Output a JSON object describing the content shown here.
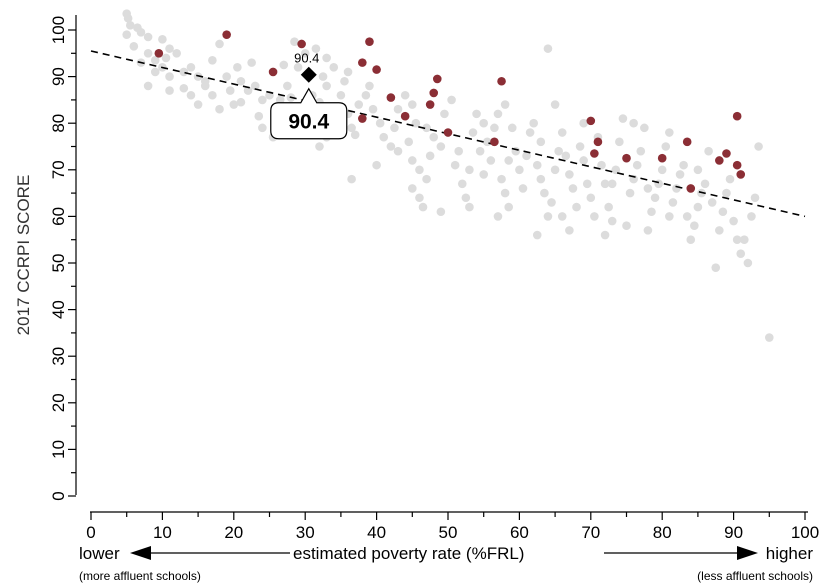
{
  "chart_data": {
    "type": "scatter",
    "ylabel": "2017 CCRPI SCORE",
    "xlabel": "estimated poverty rate (%FRL)",
    "x_left_label": "lower",
    "x_left_sublabel": "(more affluent schools)",
    "x_right_label": "higher",
    "x_right_sublabel": "(less affluent schools)",
    "xlim": [
      0,
      100
    ],
    "ylim": [
      0,
      100
    ],
    "xticks": [
      "0",
      "10",
      "20",
      "30",
      "40",
      "50",
      "60",
      "70",
      "80",
      "90",
      "100"
    ],
    "yticks": [
      "0",
      "10",
      "20",
      "30",
      "40",
      "50",
      "60",
      "70",
      "80",
      "90",
      "100"
    ],
    "grid": false,
    "colors": {
      "background_points": "#dcdcdc",
      "highlight_points": "#8b2e35",
      "trend_line": "#000000",
      "marker": "#000000"
    },
    "trend_line": {
      "style": "dashed",
      "from": [
        0,
        95.5
      ],
      "to": [
        100,
        60
      ]
    },
    "highlighted_school": {
      "x": 30.5,
      "y": 90.4,
      "label": "90.4",
      "callout": "90.4"
    },
    "series": [
      {
        "role": "highlighted",
        "points": [
          [
            9.5,
            95
          ],
          [
            19,
            99
          ],
          [
            25.5,
            91
          ],
          [
            29.5,
            97
          ],
          [
            38,
            93
          ],
          [
            39,
            97.5
          ],
          [
            40,
            91.5
          ],
          [
            42,
            85.5
          ],
          [
            38,
            81
          ],
          [
            44,
            81.5
          ],
          [
            47.5,
            84
          ],
          [
            48,
            86.5
          ],
          [
            48.5,
            89.5
          ],
          [
            50,
            78
          ],
          [
            56.5,
            76
          ],
          [
            57.5,
            89
          ],
          [
            70,
            80.5
          ],
          [
            70.5,
            73.5
          ],
          [
            71,
            76
          ],
          [
            75,
            72.5
          ],
          [
            80,
            72.5
          ],
          [
            83.5,
            76
          ],
          [
            84,
            66
          ],
          [
            88,
            72
          ],
          [
            89,
            73.5
          ],
          [
            90.5,
            71
          ],
          [
            91,
            69
          ],
          [
            90.5,
            81.5
          ]
        ]
      },
      {
        "role": "background",
        "points": [
          [
            5,
            103.5
          ],
          [
            5.2,
            102.5
          ],
          [
            5.5,
            101
          ],
          [
            6.5,
            100.5
          ],
          [
            7,
            99.5
          ],
          [
            8,
            98.5
          ],
          [
            5,
            99
          ],
          [
            6,
            96.5
          ],
          [
            8,
            95
          ],
          [
            7,
            93
          ],
          [
            9,
            93.5
          ],
          [
            10,
            98
          ],
          [
            11,
            96
          ],
          [
            10.5,
            94
          ],
          [
            12,
            95
          ],
          [
            13,
            91
          ],
          [
            11,
            90
          ],
          [
            9,
            91
          ],
          [
            10,
            92
          ],
          [
            8,
            88
          ],
          [
            11,
            87
          ],
          [
            13,
            87.5
          ],
          [
            14,
            92
          ],
          [
            15,
            90
          ],
          [
            16,
            88
          ],
          [
            14,
            86
          ],
          [
            17,
            86
          ],
          [
            15,
            84
          ],
          [
            18,
            83
          ],
          [
            16,
            89
          ],
          [
            17,
            93.5
          ],
          [
            18,
            97
          ],
          [
            19,
            90
          ],
          [
            19.5,
            87
          ],
          [
            20,
            84
          ],
          [
            21,
            84.5
          ],
          [
            22,
            87
          ],
          [
            21,
            89
          ],
          [
            20.5,
            92
          ],
          [
            22.5,
            93
          ],
          [
            23,
            88
          ],
          [
            24,
            85
          ],
          [
            25,
            86
          ],
          [
            26,
            83
          ],
          [
            23.5,
            81.5
          ],
          [
            24,
            79
          ],
          [
            25.5,
            77
          ],
          [
            26.5,
            85
          ],
          [
            27,
            82
          ],
          [
            27.5,
            88
          ],
          [
            28,
            85.5
          ],
          [
            29,
            80
          ],
          [
            30,
            82
          ],
          [
            31,
            86
          ],
          [
            32,
            84.5
          ],
          [
            33,
            88
          ],
          [
            31,
            78
          ],
          [
            32,
            75
          ],
          [
            33,
            77
          ],
          [
            34,
            83
          ],
          [
            35,
            86
          ],
          [
            36,
            82
          ],
          [
            36.5,
            79
          ],
          [
            37,
            77.5
          ],
          [
            37.5,
            84
          ],
          [
            35.5,
            89
          ],
          [
            36,
            91
          ],
          [
            34,
            92
          ],
          [
            33,
            94
          ],
          [
            32.5,
            90
          ],
          [
            29,
            92
          ],
          [
            30,
            95
          ],
          [
            31.5,
            96
          ],
          [
            28.5,
            97.5
          ],
          [
            27,
            92.5
          ],
          [
            36.5,
            68
          ],
          [
            38.5,
            86
          ],
          [
            39.5,
            83
          ],
          [
            40.5,
            80
          ],
          [
            41,
            77
          ],
          [
            42,
            75
          ],
          [
            42.5,
            79
          ],
          [
            43,
            83
          ],
          [
            44,
            86
          ],
          [
            45,
            84
          ],
          [
            45.5,
            80
          ],
          [
            44.5,
            76
          ],
          [
            43,
            74
          ],
          [
            45,
            72
          ],
          [
            46,
            70
          ],
          [
            45,
            66
          ],
          [
            46,
            64
          ],
          [
            46.5,
            62
          ],
          [
            47,
            68
          ],
          [
            47.5,
            73
          ],
          [
            48,
            77
          ],
          [
            49,
            75
          ],
          [
            49.5,
            82
          ],
          [
            50.5,
            85
          ],
          [
            51,
            71
          ],
          [
            51.5,
            74
          ],
          [
            52,
            67
          ],
          [
            52.5,
            64
          ],
          [
            53,
            70
          ],
          [
            53.5,
            78
          ],
          [
            54,
            82
          ],
          [
            54.5,
            74
          ],
          [
            55,
            69
          ],
          [
            55.5,
            76
          ],
          [
            56,
            72
          ],
          [
            56.5,
            79
          ],
          [
            57,
            82
          ],
          [
            57.5,
            68
          ],
          [
            58,
            65
          ],
          [
            58.5,
            62
          ],
          [
            58,
            84
          ],
          [
            59,
            79
          ],
          [
            59.5,
            74
          ],
          [
            60,
            70
          ],
          [
            60.5,
            66
          ],
          [
            61,
            73
          ],
          [
            61.5,
            78
          ],
          [
            62,
            80
          ],
          [
            62.5,
            71
          ],
          [
            63,
            68
          ],
          [
            63.5,
            65
          ],
          [
            64,
            60
          ],
          [
            64.5,
            63
          ],
          [
            65,
            70
          ],
          [
            65.5,
            74
          ],
          [
            64,
            96
          ],
          [
            65,
            84
          ],
          [
            66,
            78
          ],
          [
            66.5,
            73
          ],
          [
            67,
            69
          ],
          [
            67.5,
            66
          ],
          [
            68,
            62
          ],
          [
            68.5,
            75
          ],
          [
            69,
            72
          ],
          [
            69.5,
            67
          ],
          [
            70,
            64
          ],
          [
            70.5,
            60
          ],
          [
            71,
            77
          ],
          [
            71.5,
            71
          ],
          [
            72,
            56
          ],
          [
            72.5,
            62
          ],
          [
            73,
            67
          ],
          [
            73.5,
            70
          ],
          [
            74,
            76
          ],
          [
            74.5,
            81
          ],
          [
            75,
            58
          ],
          [
            75.5,
            65
          ],
          [
            76,
            68
          ],
          [
            76.5,
            71
          ],
          [
            77,
            74
          ],
          [
            77.5,
            79
          ],
          [
            78,
            57
          ],
          [
            78.5,
            61
          ],
          [
            79,
            64
          ],
          [
            79.5,
            67
          ],
          [
            80,
            70
          ],
          [
            80.5,
            75
          ],
          [
            81,
            78
          ],
          [
            81.5,
            63
          ],
          [
            82,
            66
          ],
          [
            82.5,
            69
          ],
          [
            83,
            71
          ],
          [
            83.5,
            60
          ],
          [
            84,
            55
          ],
          [
            84.5,
            58
          ],
          [
            85,
            62
          ],
          [
            85.5,
            65
          ],
          [
            86,
            67
          ],
          [
            86.5,
            74
          ],
          [
            87,
            63
          ],
          [
            87.5,
            49
          ],
          [
            88,
            57
          ],
          [
            88.5,
            61
          ],
          [
            89,
            65
          ],
          [
            89.5,
            68
          ],
          [
            90,
            59
          ],
          [
            90.5,
            55
          ],
          [
            91,
            52
          ],
          [
            91.5,
            55
          ],
          [
            92,
            50
          ],
          [
            92.5,
            60
          ],
          [
            93,
            64
          ],
          [
            93.5,
            75
          ],
          [
            95,
            34
          ],
          [
            67,
            57
          ],
          [
            78,
            66
          ],
          [
            73,
            59
          ],
          [
            76,
            80
          ],
          [
            62.5,
            56
          ],
          [
            58.5,
            72
          ],
          [
            49,
            61
          ],
          [
            40,
            71
          ],
          [
            47,
            79
          ],
          [
            34.5,
            80
          ],
          [
            39,
            88
          ],
          [
            55,
            80
          ],
          [
            66,
            60
          ],
          [
            81,
            60
          ],
          [
            72,
            67
          ],
          [
            69,
            80
          ],
          [
            63,
            76
          ],
          [
            57,
            60
          ],
          [
            53,
            62
          ],
          [
            85,
            70
          ]
        ]
      }
    ]
  }
}
